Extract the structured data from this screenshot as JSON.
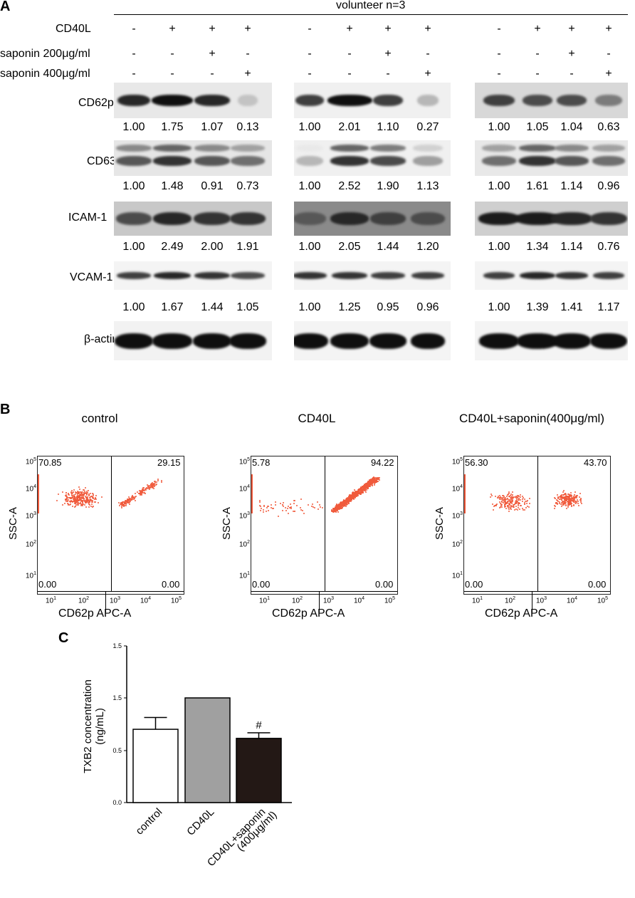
{
  "panelA": {
    "letter": "A",
    "header": "volunteer n=3",
    "conditions": [
      {
        "label": "CD40L",
        "signs": [
          "-",
          "+",
          "+",
          "+"
        ]
      },
      {
        "label": "saponin 200μg/ml",
        "signs": [
          "-",
          "-",
          "+",
          "-"
        ]
      },
      {
        "label": "saponin 400μg/ml",
        "signs": [
          "-",
          "-",
          "-",
          "+"
        ]
      }
    ],
    "proteins": [
      {
        "name": "CD62p",
        "values": [
          [
            "1.00",
            "1.75",
            "1.07",
            "0.13"
          ],
          [
            "1.00",
            "2.01",
            "1.10",
            "0.27"
          ],
          [
            "1.00",
            "1.05",
            "1.04",
            "0.63"
          ]
        ]
      },
      {
        "name": "CD63",
        "values": [
          [
            "1.00",
            "1.48",
            "0.91",
            "0.73"
          ],
          [
            "1.00",
            "2.52",
            "1.90",
            "1.13"
          ],
          [
            "1.00",
            "1.61",
            "1.14",
            "0.96"
          ]
        ]
      },
      {
        "name": "ICAM-1",
        "values": [
          [
            "1.00",
            "2.49",
            "2.00",
            "1.91"
          ],
          [
            "1.00",
            "2.05",
            "1.44",
            "1.20"
          ],
          [
            "1.00",
            "1.34",
            "1.14",
            "0.76"
          ]
        ]
      },
      {
        "name": "VCAM-1",
        "values": [
          [
            "1.00",
            "1.67",
            "1.44",
            "1.05"
          ],
          [
            "1.00",
            "1.25",
            "0.95",
            "0.96"
          ],
          [
            "1.00",
            "1.39",
            "1.41",
            "1.17"
          ]
        ]
      },
      {
        "name": "β-actin",
        "values": []
      }
    ]
  },
  "panelB": {
    "letter": "B",
    "plots": [
      {
        "title": "control",
        "ul": "70.85",
        "ur": "29.15",
        "ll": "0.00",
        "lr": "0.00"
      },
      {
        "title": "CD40L",
        "ul": "5.78",
        "ur": "94.22",
        "ll": "0.00",
        "lr": "0.00"
      },
      {
        "title": "CD40L+saponin(400μg/ml)",
        "ul": "56.30",
        "ur": "43.70",
        "ll": "0.00",
        "lr": "0.00"
      }
    ],
    "ylabel": "SSC-A",
    "xlabel": "CD62p APC-A",
    "ticks": [
      "10",
      "10",
      "10",
      "10",
      "10"
    ],
    "tick_exp": [
      "1",
      "2",
      "3",
      "4",
      "5"
    ]
  },
  "panelC": {
    "letter": "C",
    "chart_data": {
      "type": "bar",
      "categories": [
        "control",
        "CD40L",
        "CD40L+saponin\n(400μg/ml)"
      ],
      "values": [
        1.05,
        1.5,
        0.92
      ],
      "errors": [
        0.17,
        0,
        0.08
      ],
      "colors": [
        "#ffffff",
        "#a0a0a0",
        "#231815"
      ],
      "annotations": [
        "",
        "",
        "#"
      ],
      "ylabel": "TXB2 concentration\n(ng/mL)",
      "ylim": [
        0,
        2.0
      ],
      "yticks": [
        "0.0",
        "0.5",
        "1.5",
        "1.5"
      ]
    }
  }
}
